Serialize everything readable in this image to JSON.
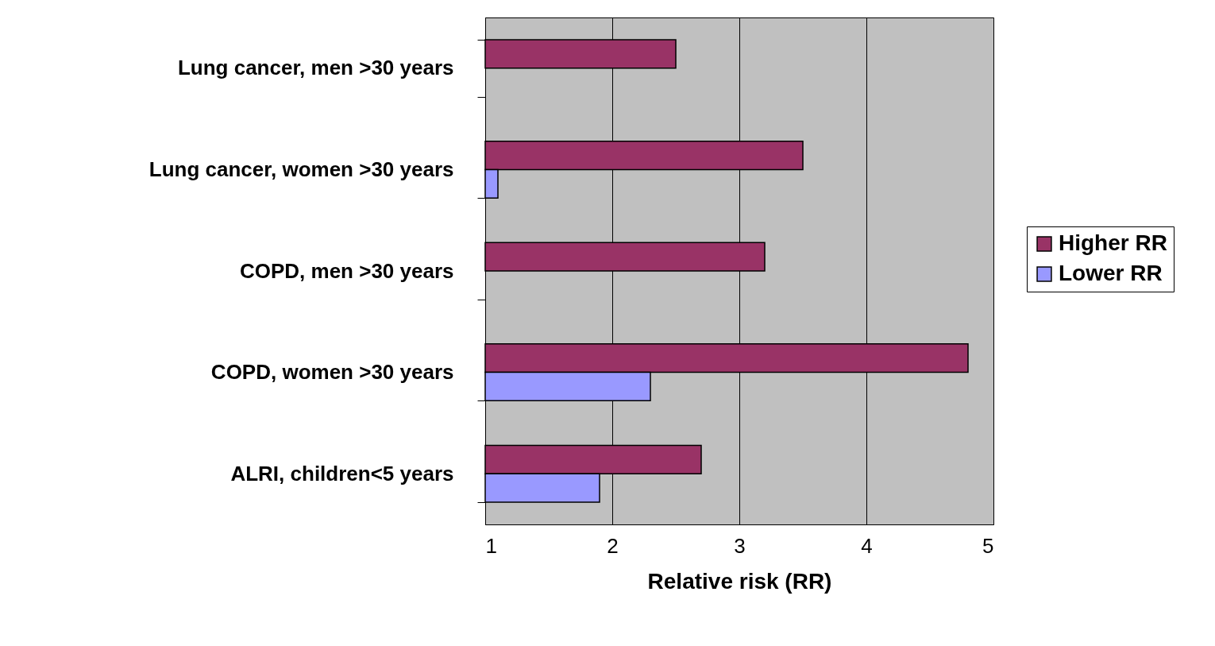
{
  "chart_data": {
    "type": "bar",
    "orientation": "horizontal",
    "xlabel": "Relative risk (RR)",
    "categories": [
      "Lung cancer, men >30 years",
      "Lung cancer, women >30 years",
      "COPD, men >30 years",
      "COPD, women >30 years",
      "ALRI, children<5 years"
    ],
    "series": [
      {
        "name": "Higher RR",
        "color": "#993366",
        "values": [
          2.5,
          3.5,
          3.2,
          4.8,
          2.7
        ]
      },
      {
        "name": "Lower RR",
        "color": "#9999ff",
        "values": [
          null,
          1.1,
          null,
          2.3,
          1.9
        ]
      }
    ],
    "xlim": [
      1,
      5
    ],
    "xticks": [
      1,
      2,
      3,
      4,
      5
    ],
    "grid": "x",
    "legend": "right"
  }
}
